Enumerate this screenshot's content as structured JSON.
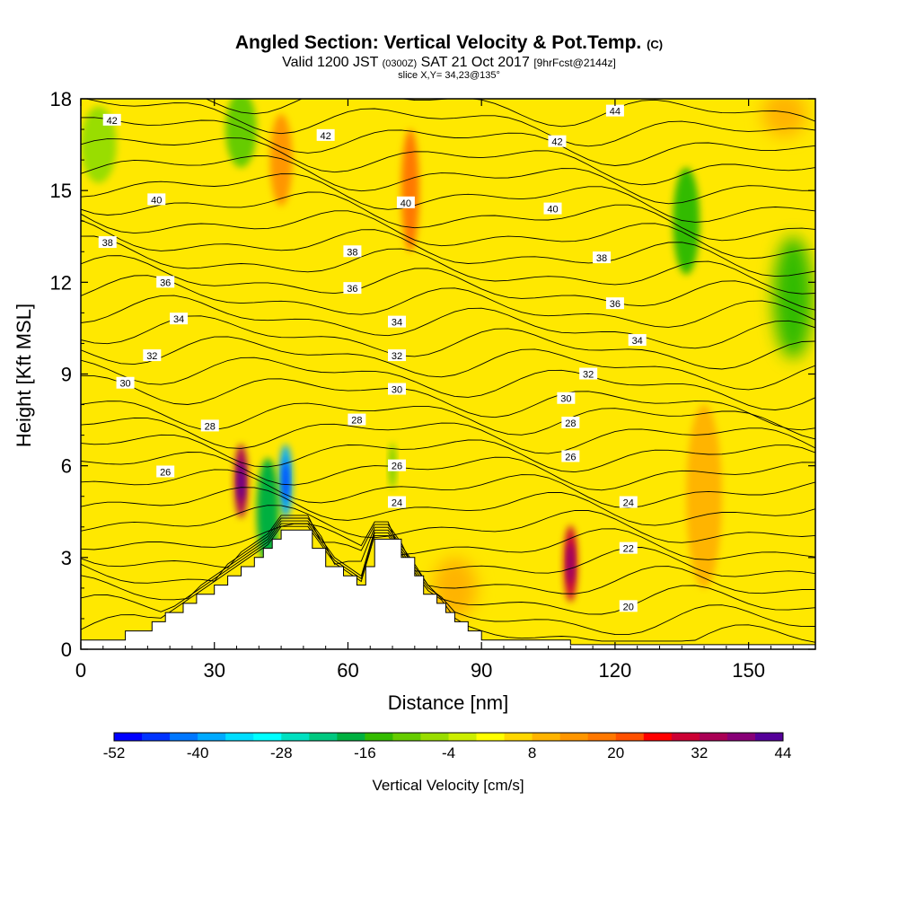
{
  "chart_data": {
    "type": "heatmap",
    "title": "Angled Section: Vertical Velocity & Pot.Temp.",
    "title_unit": "(C)",
    "subtitle": {
      "valid": "Valid 1200 JST",
      "utc": "(0300Z)",
      "date": "SAT 21 Oct 2017",
      "fcst": "[9hrFcst@2144z]"
    },
    "slice_label": "slice X,Y= 34,23@135°",
    "xlabel": "Distance [nm]",
    "ylabel": "Height [Kft MSL]",
    "xlim": [
      0,
      165
    ],
    "ylim": [
      0,
      18
    ],
    "x_ticks": [
      "0",
      "30",
      "60",
      "90",
      "120",
      "150"
    ],
    "x_tick_values": [
      0,
      30,
      60,
      90,
      120,
      150
    ],
    "y_ticks": [
      "0",
      "3",
      "6",
      "9",
      "12",
      "15",
      "18"
    ],
    "y_tick_values": [
      0,
      3,
      6,
      9,
      12,
      15,
      18
    ],
    "colorbar": {
      "label": "Vertical Velocity [cm/s]",
      "tick_labels": [
        "-52",
        "-40",
        "-28",
        "-16",
        "-4",
        "8",
        "20",
        "32",
        "44"
      ],
      "levels": [
        -52,
        -48,
        -44,
        -40,
        -36,
        -32,
        -28,
        -24,
        -20,
        -16,
        -12,
        -8,
        -4,
        0,
        4,
        8,
        12,
        16,
        20,
        24,
        28,
        32,
        36,
        40,
        44
      ],
      "colors": [
        "#0000ff",
        "#0033ff",
        "#0077ff",
        "#00aaff",
        "#00ddff",
        "#00ffff",
        "#00e0c0",
        "#00c880",
        "#00b040",
        "#33bb00",
        "#66cc00",
        "#99dd00",
        "#ccee00",
        "#ffff00",
        "#ffd700",
        "#ffb400",
        "#ff9600",
        "#ff7800",
        "#ff5000",
        "#ff0000",
        "#cc0033",
        "#aa0055",
        "#880077",
        "#550099"
      ]
    },
    "terrain": [
      [
        0,
        0.3
      ],
      [
        10,
        0.3
      ],
      [
        10,
        0.6
      ],
      [
        16,
        0.6
      ],
      [
        16,
        0.9
      ],
      [
        19,
        0.9
      ],
      [
        19,
        1.2
      ],
      [
        23,
        1.2
      ],
      [
        23,
        1.5
      ],
      [
        26,
        1.5
      ],
      [
        26,
        1.8
      ],
      [
        30,
        1.8
      ],
      [
        30,
        2.1
      ],
      [
        33,
        2.1
      ],
      [
        33,
        2.4
      ],
      [
        36,
        2.4
      ],
      [
        36,
        2.7
      ],
      [
        39,
        2.7
      ],
      [
        39,
        3.0
      ],
      [
        41,
        3.0
      ],
      [
        41,
        3.3
      ],
      [
        43,
        3.3
      ],
      [
        43,
        3.6
      ],
      [
        45,
        3.6
      ],
      [
        45,
        3.9
      ],
      [
        52,
        3.9
      ],
      [
        52,
        3.3
      ],
      [
        55,
        3.3
      ],
      [
        55,
        2.7
      ],
      [
        59,
        2.7
      ],
      [
        59,
        2.4
      ],
      [
        62,
        2.4
      ],
      [
        62,
        2.1
      ],
      [
        64,
        2.1
      ],
      [
        64,
        2.7
      ],
      [
        66,
        2.7
      ],
      [
        66,
        3.6
      ],
      [
        72,
        3.6
      ],
      [
        72,
        3.0
      ],
      [
        75,
        3.0
      ],
      [
        75,
        2.4
      ],
      [
        77,
        2.4
      ],
      [
        77,
        1.8
      ],
      [
        80,
        1.8
      ],
      [
        80,
        1.5
      ],
      [
        82,
        1.5
      ],
      [
        82,
        1.2
      ],
      [
        84,
        1.2
      ],
      [
        84,
        0.9
      ],
      [
        87,
        0.9
      ],
      [
        87,
        0.6
      ],
      [
        90,
        0.6
      ],
      [
        90,
        0.3
      ],
      [
        110,
        0.3
      ],
      [
        110,
        0.15
      ],
      [
        165,
        0.15
      ]
    ],
    "velocity_features": [
      {
        "x": 36,
        "y": 5.5,
        "w": 3,
        "h": 2.4,
        "value": 32
      },
      {
        "x": 46,
        "y": 5.5,
        "w": 3,
        "h": 2.4,
        "value": -40
      },
      {
        "x": 42,
        "y": 4.5,
        "w": 5,
        "h": 3.5,
        "value": -20
      },
      {
        "x": 110,
        "y": 2.8,
        "w": 3,
        "h": 2.5,
        "value": 28
      },
      {
        "x": 74,
        "y": 15,
        "w": 4,
        "h": 4,
        "value": 16
      },
      {
        "x": 45,
        "y": 16,
        "w": 5,
        "h": 3,
        "value": 12
      },
      {
        "x": 136,
        "y": 14,
        "w": 6,
        "h": 3.5,
        "value": -16
      },
      {
        "x": 160,
        "y": 11.5,
        "w": 9,
        "h": 4,
        "value": -14
      },
      {
        "x": 36,
        "y": 17,
        "w": 7,
        "h": 2.5,
        "value": -12
      },
      {
        "x": 4,
        "y": 16.5,
        "w": 8,
        "h": 2.5,
        "value": -8
      },
      {
        "x": 84,
        "y": 2,
        "w": 10,
        "h": 2,
        "value": 10
      },
      {
        "x": 140,
        "y": 5,
        "w": 8,
        "h": 6,
        "value": 8
      },
      {
        "x": 158,
        "y": 17.5,
        "w": 10,
        "h": 1.5,
        "value": 10
      },
      {
        "x": 70,
        "y": 6,
        "w": 1.5,
        "h": 1.5,
        "value": -10
      }
    ],
    "theta_labels": [
      {
        "text": "42",
        "x": 7,
        "y": 17.3
      },
      {
        "text": "42",
        "x": 55,
        "y": 16.8
      },
      {
        "text": "44",
        "x": 120,
        "y": 17.6
      },
      {
        "text": "42",
        "x": 107,
        "y": 16.6
      },
      {
        "text": "40",
        "x": 17,
        "y": 14.7
      },
      {
        "text": "40",
        "x": 73,
        "y": 14.6
      },
      {
        "text": "40",
        "x": 106,
        "y": 14.4
      },
      {
        "text": "38",
        "x": 6,
        "y": 13.3
      },
      {
        "text": "38",
        "x": 61,
        "y": 13.0
      },
      {
        "text": "38",
        "x": 117,
        "y": 12.8
      },
      {
        "text": "36",
        "x": 19,
        "y": 12.0
      },
      {
        "text": "36",
        "x": 61,
        "y": 11.8
      },
      {
        "text": "36",
        "x": 120,
        "y": 11.3
      },
      {
        "text": "34",
        "x": 22,
        "y": 10.8
      },
      {
        "text": "34",
        "x": 71,
        "y": 10.7
      },
      {
        "text": "34",
        "x": 125,
        "y": 10.1
      },
      {
        "text": "32",
        "x": 16,
        "y": 9.6
      },
      {
        "text": "32",
        "x": 71,
        "y": 9.6
      },
      {
        "text": "32",
        "x": 114,
        "y": 9.0
      },
      {
        "text": "30",
        "x": 10,
        "y": 8.7
      },
      {
        "text": "30",
        "x": 71,
        "y": 8.5
      },
      {
        "text": "30",
        "x": 109,
        "y": 8.2
      },
      {
        "text": "28",
        "x": 29,
        "y": 7.3
      },
      {
        "text": "28",
        "x": 62,
        "y": 7.5
      },
      {
        "text": "28",
        "x": 110,
        "y": 7.4
      },
      {
        "text": "26",
        "x": 19,
        "y": 5.8
      },
      {
        "text": "26",
        "x": 71,
        "y": 6.0
      },
      {
        "text": "26",
        "x": 110,
        "y": 6.3
      },
      {
        "text": "24",
        "x": 71,
        "y": 4.8
      },
      {
        "text": "24",
        "x": 123,
        "y": 4.8
      },
      {
        "text": "22",
        "x": 123,
        "y": 3.3
      },
      {
        "text": "20",
        "x": 123,
        "y": 1.4
      }
    ]
  }
}
